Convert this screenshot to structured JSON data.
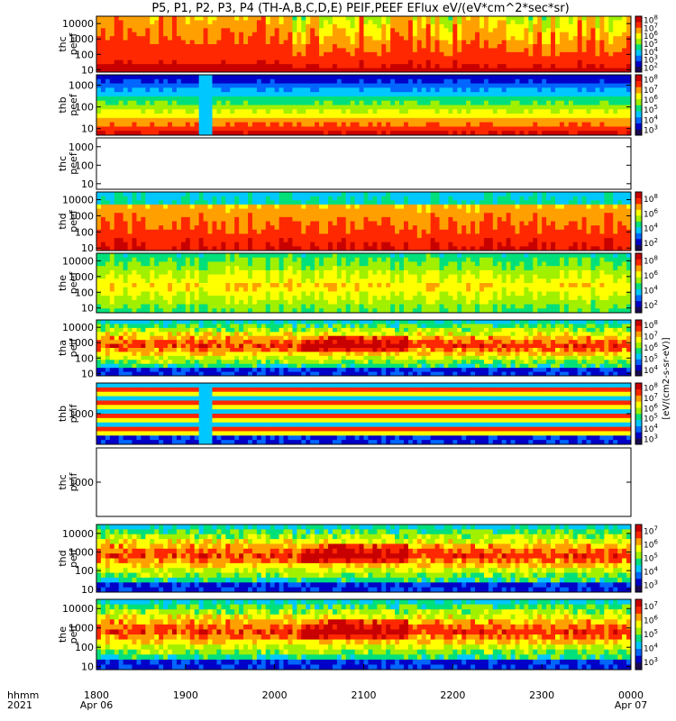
{
  "chart_data": {
    "type": "heatmap",
    "title": "P5, P1, P2, P3, P4 (TH-A,B,C,D,E) PEIF,PEEF EFlux eV/(eV*cm^2*sec*sr)",
    "time_labels": [
      "1800",
      "1900",
      "2000",
      "2100",
      "2200",
      "2300",
      "0000"
    ],
    "date_labels": [
      "Apr 06",
      "Apr 07"
    ],
    "time_header": "hhmm",
    "year_label": "2021",
    "colorbar_unit_label": "[eV/(cm2-s-sr-eV)]",
    "panels": [
      {
        "probe": "thc",
        "species": "peef",
        "yscale": "log",
        "ylim": [
          7,
          30000
        ],
        "yticks": [
          "10",
          "100",
          "1000",
          "10000"
        ],
        "has_data": true,
        "colorbar_ticks": [
          "10^2",
          "10^3",
          "10^4",
          "10^5",
          "10^6",
          "10^7",
          "10^8"
        ]
      },
      {
        "probe": "thb",
        "species": "peef",
        "yscale": "log",
        "ylim": [
          5,
          3000
        ],
        "yticks": [
          "10",
          "100",
          "1000"
        ],
        "has_data": true,
        "colorbar_ticks": [
          "10^3",
          "10^4",
          "10^5",
          "10^6",
          "10^7",
          "10^8"
        ]
      },
      {
        "probe": "thc",
        "species": "peef",
        "yscale": "log",
        "ylim": [
          5,
          3000
        ],
        "yticks": [
          "10",
          "100",
          "1000"
        ],
        "has_data": false,
        "colorbar_ticks": []
      },
      {
        "probe": "thd",
        "species": "peef",
        "yscale": "log",
        "ylim": [
          7,
          30000
        ],
        "yticks": [
          "10",
          "100",
          "1000",
          "10000"
        ],
        "has_data": true,
        "colorbar_ticks": [
          "10^2",
          "10^4",
          "10^6",
          "10^8"
        ]
      },
      {
        "probe": "the",
        "species": "peef",
        "yscale": "log",
        "ylim": [
          5,
          30000
        ],
        "yticks": [
          "10",
          "100",
          "1000",
          "10000"
        ],
        "has_data": true,
        "colorbar_ticks": [
          "10^2",
          "10^4",
          "10^6",
          "10^8"
        ]
      },
      {
        "probe": "tha",
        "species": "peif",
        "yscale": "log",
        "ylim": [
          7,
          30000
        ],
        "yticks": [
          "10",
          "100",
          "1000",
          "10000"
        ],
        "has_data": true,
        "colorbar_ticks": [
          "10^4",
          "10^5",
          "10^6",
          "10^7",
          "10^8"
        ]
      },
      {
        "probe": "thb",
        "species": "peif",
        "yscale": "log",
        "ylim": [
          200,
          5000
        ],
        "yticks": [
          "1000"
        ],
        "has_data": true,
        "colorbar_ticks": [
          "10^3",
          "10^4",
          "10^5",
          "10^6",
          "10^7",
          "10^8"
        ]
      },
      {
        "probe": "thc",
        "species": "peif",
        "yscale": "log",
        "ylim": [
          200,
          5000
        ],
        "yticks": [
          "1000"
        ],
        "has_data": false,
        "colorbar_ticks": []
      },
      {
        "probe": "thd",
        "species": "peif",
        "yscale": "log",
        "ylim": [
          7,
          30000
        ],
        "yticks": [
          "10",
          "100",
          "1000",
          "10000"
        ],
        "has_data": true,
        "colorbar_ticks": [
          "10^3",
          "10^4",
          "10^5",
          "10^6",
          "10^7"
        ]
      },
      {
        "probe": "the",
        "species": "peif",
        "yscale": "log",
        "ylim": [
          7,
          30000
        ],
        "yticks": [
          "10",
          "100",
          "1000",
          "10000"
        ],
        "has_data": true,
        "colorbar_ticks": [
          "10^3",
          "10^4",
          "10^5",
          "10^6",
          "10^7"
        ]
      }
    ],
    "colormap": [
      "#1a0a50",
      "#0000c8",
      "#0066ff",
      "#00c8ff",
      "#00e07a",
      "#a0f000",
      "#ffff00",
      "#ffa000",
      "#ff2800",
      "#c80000"
    ]
  }
}
